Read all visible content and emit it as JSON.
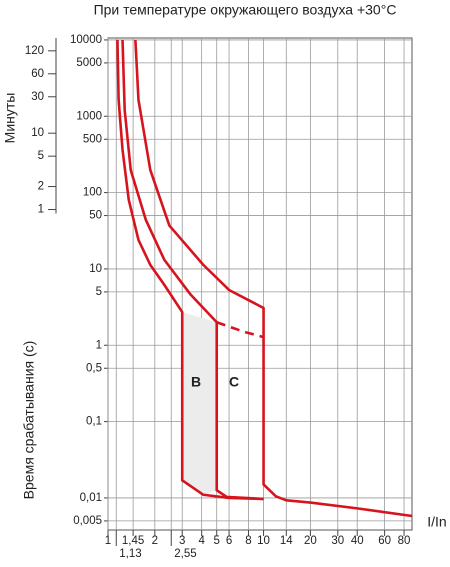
{
  "chart_data": {
    "type": "line",
    "title": "При температуре окружающего воздуха +30°C",
    "ylabel": "Время срабатывания (с)",
    "y2label": "Минуты",
    "xlabel": "I/In",
    "annotations": [
      "B",
      "C"
    ],
    "xscale": "log",
    "yscale": "log",
    "grid": true,
    "xlim": [
      1,
      90
    ],
    "xticks": [
      1,
      {
        "value": 1.13,
        "label": "1,13"
      },
      {
        "value": 1.45,
        "label": "1,45"
      },
      2,
      {
        "value": 2.55,
        "label": "2,55"
      },
      3,
      4,
      5,
      6,
      8,
      10,
      14,
      20,
      30,
      40,
      60,
      80
    ],
    "ylim": [
      0.0038,
      10600
    ],
    "yticks": [
      10000,
      5000,
      1000,
      500,
      100,
      50,
      10,
      5,
      1,
      {
        "value": 0.5,
        "label": "0,5"
      },
      {
        "value": 0.1,
        "label": "0,1"
      },
      {
        "value": 0.01,
        "label": "0,01"
      },
      {
        "value": 0.005,
        "label": "0,005"
      }
    ],
    "y2lim": [
      6.33e-05,
      176.67
    ],
    "y2ticks": [
      120,
      60,
      30,
      10,
      5,
      2,
      1
    ],
    "series": [
      {
        "color": "#d7141e",
        "x": [
          1.15,
          1.17,
          1.24,
          1.36,
          1.57,
          1.87,
          2.3,
          3,
          3,
          4.1,
          6,
          10
        ],
        "values": [
          10000,
          1640,
          364,
          80,
          24,
          11.3,
          6.2,
          2.72,
          0.017,
          0.011,
          0.01,
          0.0097
        ]
      },
      {
        "color": "#d7141e",
        "x": [
          1.24,
          1.28,
          1.4,
          1.75,
          2.3,
          3.4,
          5,
          5,
          5.8,
          10
        ],
        "values": [
          10000,
          1210,
          198,
          44,
          13.2,
          4.6,
          2,
          0.0126,
          0.0103,
          0.0097
        ]
      },
      {
        "color": "#d7141e",
        "dashed": true,
        "x": [
          5,
          7.5,
          10
        ],
        "values": [
          2,
          1.5,
          1.28
        ]
      },
      {
        "color": "#d7141e",
        "x": [
          1.5,
          1.57,
          1.87,
          2.48,
          4.1,
          6,
          10,
          10,
          12,
          14,
          20,
          40,
          90
        ],
        "values": [
          10000,
          1640,
          198,
          37,
          11.3,
          5.3,
          3.08,
          0.015,
          0.0105,
          0.0093,
          0.0087,
          0.0073,
          0.0058
        ]
      }
    ]
  }
}
